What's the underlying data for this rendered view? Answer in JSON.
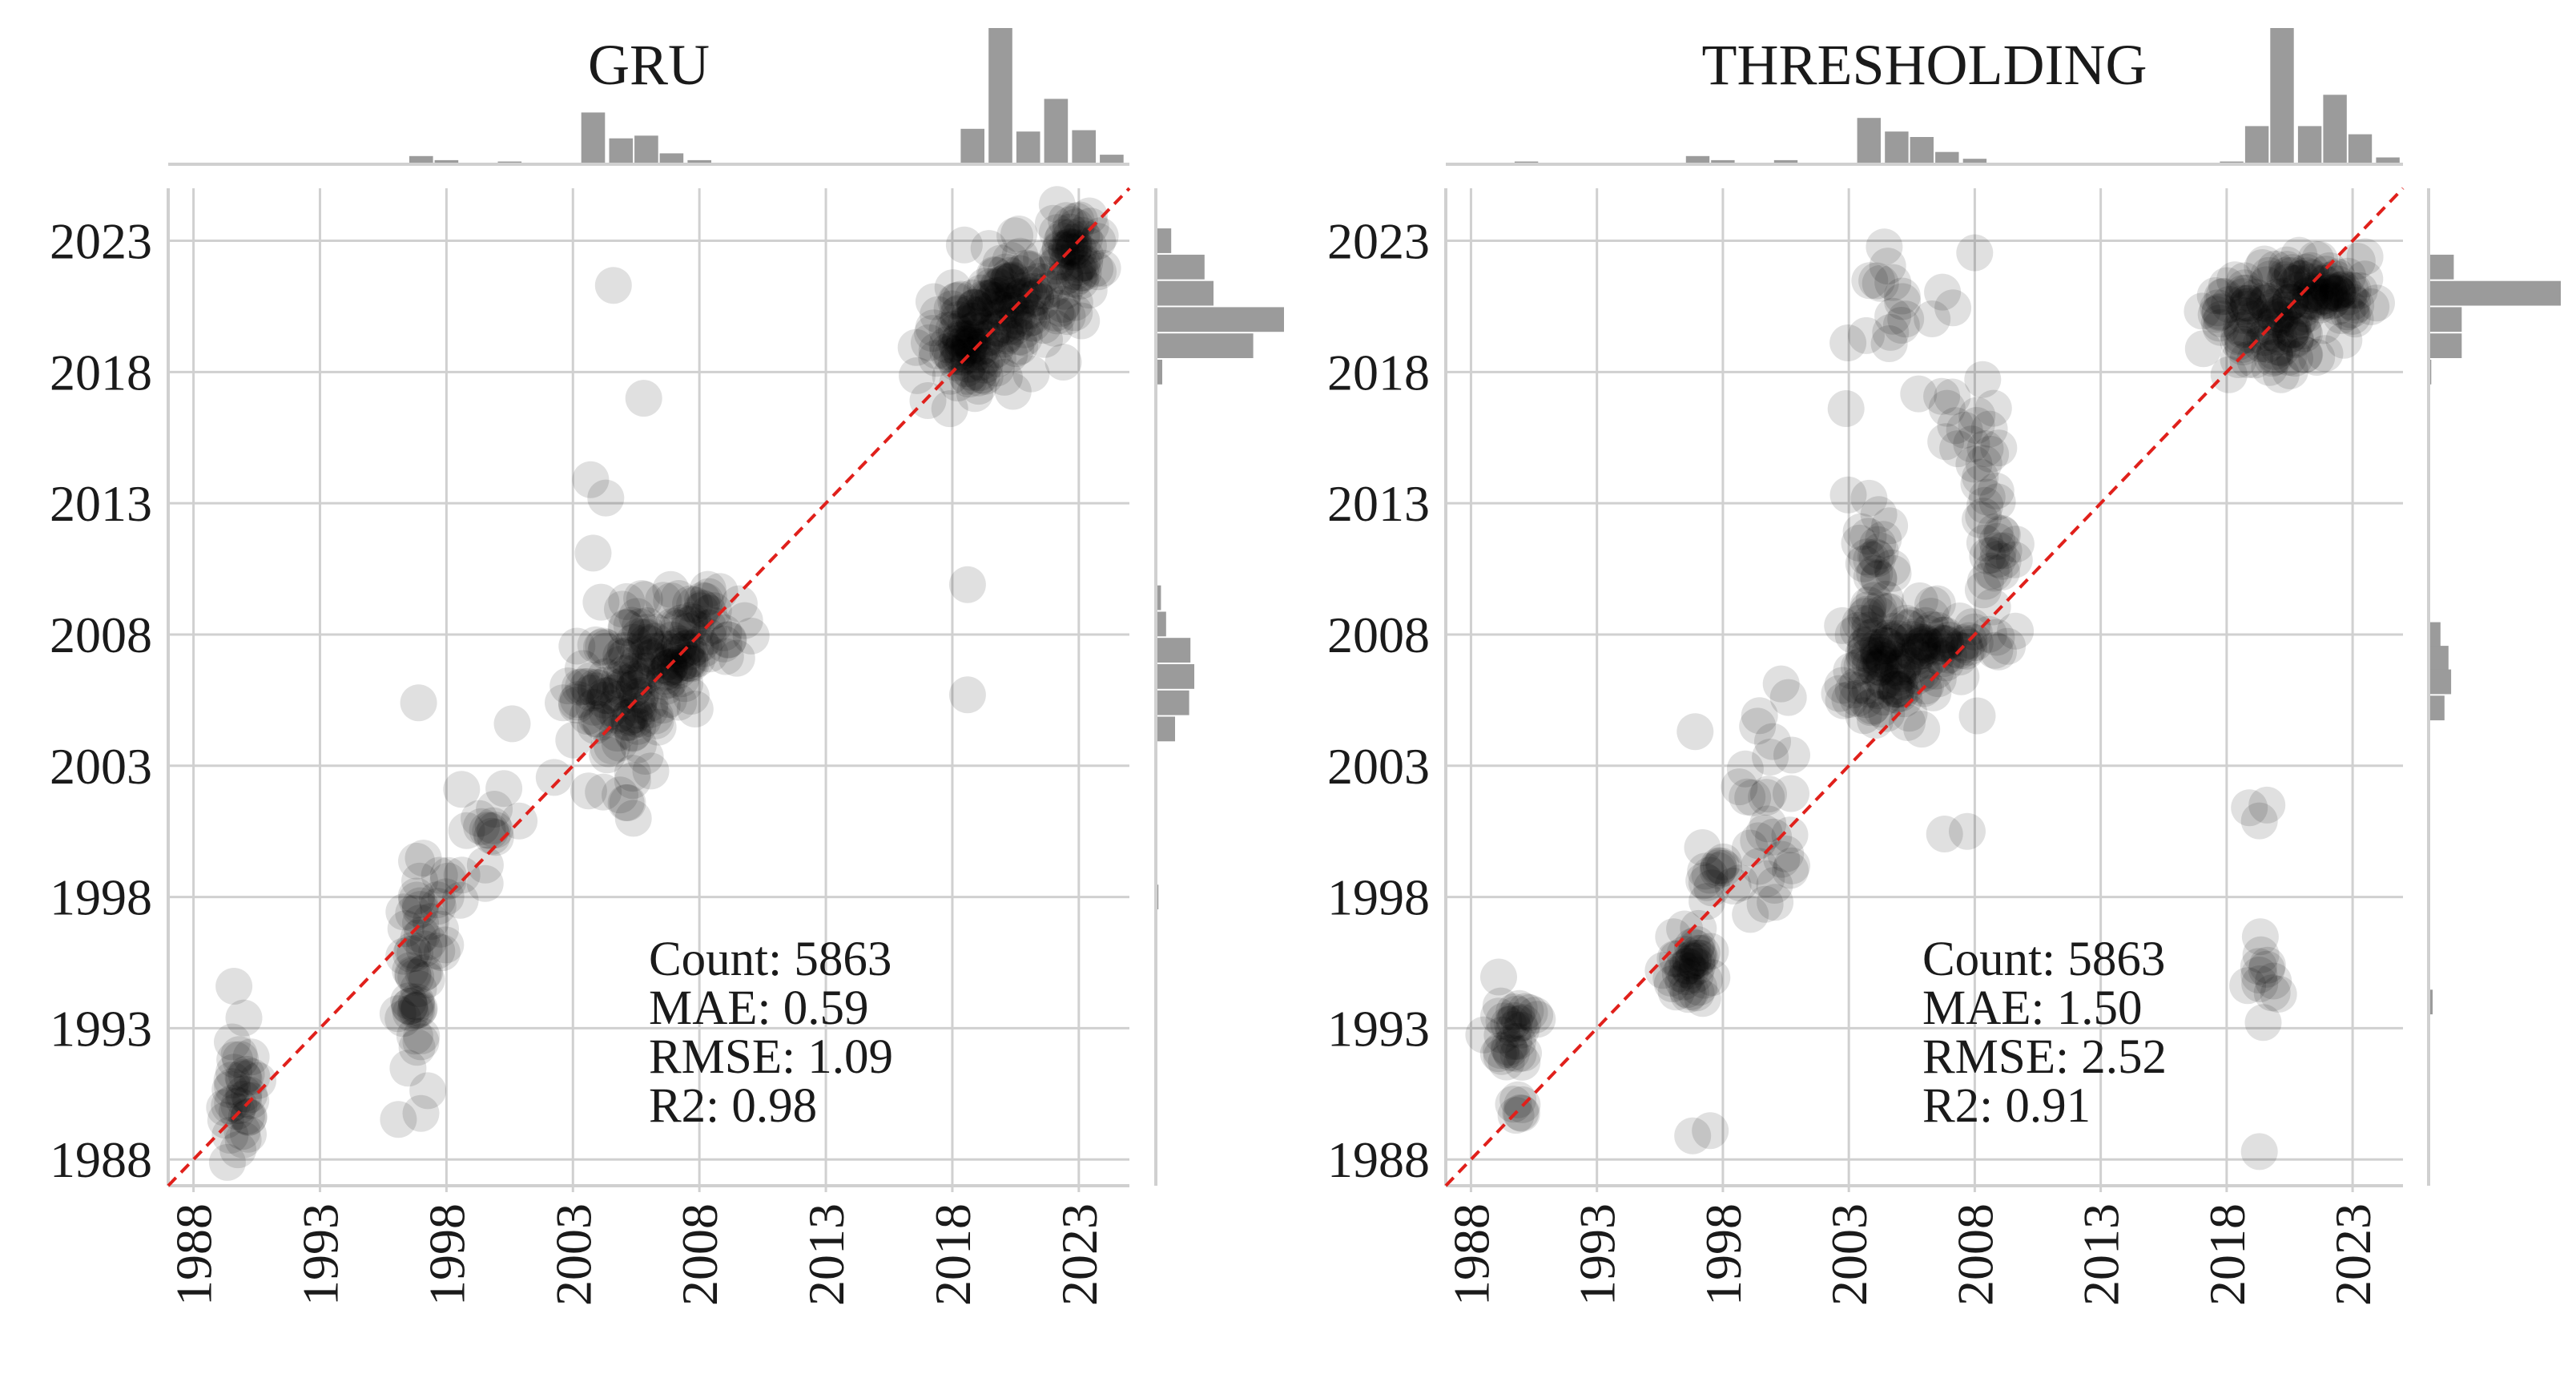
{
  "chart_data": [
    {
      "type": "scatter",
      "title": "GRU",
      "xlabel": "",
      "ylabel": "",
      "xlim": [
        1987,
        2025
      ],
      "ylim": [
        1987,
        2025
      ],
      "ticks": [
        1988,
        1993,
        1998,
        2003,
        2008,
        2013,
        2018,
        2023
      ],
      "tick_labels": [
        "1988",
        "1993",
        "1998",
        "2003",
        "2008",
        "2013",
        "2018",
        "2023"
      ],
      "grid": true,
      "reference_line": "y = x",
      "colors": {
        "points": "#000000",
        "reference_line": "#e0201b",
        "histogram": "#9b9b9b"
      },
      "annotation": [
        "Count: 5863",
        "MAE: 0.59",
        "RMSE: 1.09",
        "R2: 0.98"
      ],
      "clusters": [
        {
          "x": 1989.8,
          "y": 1990.2,
          "sx": 0.4,
          "sy": 1.3,
          "n": 34
        },
        {
          "x": 1996.8,
          "y": 1995.6,
          "sx": 0.35,
          "sy": 2.2,
          "n": 46
        },
        {
          "x": 1997.8,
          "y": 1997.8,
          "sx": 0.6,
          "sy": 0.8,
          "n": 14
        },
        {
          "x": 2000.0,
          "y": 2000.3,
          "sx": 0.5,
          "sy": 0.9,
          "n": 14
        },
        {
          "x": 2004.6,
          "y": 2005.4,
          "sx": 0.9,
          "sy": 1.4,
          "n": 90
        },
        {
          "x": 2006.5,
          "y": 2006.9,
          "sx": 1.0,
          "sy": 1.1,
          "n": 70
        },
        {
          "x": 2008.3,
          "y": 2008.3,
          "sx": 0.8,
          "sy": 0.8,
          "n": 40
        },
        {
          "x": 2018.7,
          "y": 2019.2,
          "sx": 0.9,
          "sy": 1.0,
          "n": 90
        },
        {
          "x": 2020.6,
          "y": 2020.8,
          "sx": 1.1,
          "sy": 1.1,
          "n": 100
        },
        {
          "x": 2022.8,
          "y": 2022.6,
          "sx": 0.6,
          "sy": 0.9,
          "n": 50
        }
      ],
      "outliers": [
        {
          "x": 1989.6,
          "y": 1994.6
        },
        {
          "x": 1996.9,
          "y": 2005.4
        },
        {
          "x": 1998.6,
          "y": 2002.1
        },
        {
          "x": 2000.6,
          "y": 2004.6
        },
        {
          "x": 2003.7,
          "y": 2013.9
        },
        {
          "x": 2004.3,
          "y": 2013.2
        },
        {
          "x": 2004.6,
          "y": 2021.3
        },
        {
          "x": 2005.8,
          "y": 2017.0
        },
        {
          "x": 2003.8,
          "y": 2011.1
        },
        {
          "x": 2018.6,
          "y": 2009.9
        },
        {
          "x": 2018.6,
          "y": 2005.7
        },
        {
          "x": 2004.2,
          "y": 2002.0
        }
      ],
      "x_histogram": [
        {
          "x": 1990.2,
          "h": 0.01
        },
        {
          "x": 1997.0,
          "h": 0.06
        },
        {
          "x": 1998.0,
          "h": 0.03
        },
        {
          "x": 2000.5,
          "h": 0.02
        },
        {
          "x": 2003.8,
          "h": 0.38
        },
        {
          "x": 2004.9,
          "h": 0.19
        },
        {
          "x": 2005.9,
          "h": 0.21
        },
        {
          "x": 2006.9,
          "h": 0.08
        },
        {
          "x": 2008.0,
          "h": 0.03
        },
        {
          "x": 2018.8,
          "h": 0.26
        },
        {
          "x": 2019.9,
          "h": 1.0
        },
        {
          "x": 2021.0,
          "h": 0.24
        },
        {
          "x": 2022.1,
          "h": 0.48
        },
        {
          "x": 2023.2,
          "h": 0.25
        },
        {
          "x": 2024.3,
          "h": 0.07
        }
      ],
      "y_histogram": [
        {
          "y": 2023.0,
          "w": 0.12
        },
        {
          "y": 2022.0,
          "w": 0.38
        },
        {
          "y": 2021.0,
          "w": 0.45
        },
        {
          "y": 2020.0,
          "w": 1.0
        },
        {
          "y": 2019.0,
          "w": 0.76
        },
        {
          "y": 2018.0,
          "w": 0.05
        },
        {
          "y": 2009.4,
          "w": 0.04
        },
        {
          "y": 2008.4,
          "w": 0.08
        },
        {
          "y": 2007.4,
          "w": 0.27
        },
        {
          "y": 2006.4,
          "w": 0.3
        },
        {
          "y": 2005.4,
          "w": 0.26
        },
        {
          "y": 2004.4,
          "w": 0.15
        },
        {
          "y": 1998.0,
          "w": 0.02
        }
      ]
    },
    {
      "type": "scatter",
      "title": "THRESHOLDING",
      "xlabel": "",
      "ylabel": "",
      "xlim": [
        1987,
        2025
      ],
      "ylim": [
        1987,
        2025
      ],
      "ticks": [
        1988,
        1993,
        1998,
        2003,
        2008,
        2013,
        2018,
        2023
      ],
      "tick_labels": [
        "1988",
        "1993",
        "1998",
        "2003",
        "2008",
        "2013",
        "2018",
        "2023"
      ],
      "grid": true,
      "reference_line": "y = x",
      "colors": {
        "points": "#000000",
        "reference_line": "#e0201b",
        "histogram": "#9b9b9b"
      },
      "annotation": [
        "Count: 5863",
        "MAE: 1.50",
        "RMSE: 2.52",
        "R2: 0.91"
      ],
      "clusters": [
        {
          "x": 1989.7,
          "y": 1993.0,
          "sx": 0.5,
          "sy": 1.0,
          "n": 32
        },
        {
          "x": 1990.0,
          "y": 1989.9,
          "sx": 0.3,
          "sy": 0.3,
          "n": 6
        },
        {
          "x": 1996.7,
          "y": 1995.2,
          "sx": 0.5,
          "sy": 0.6,
          "n": 40
        },
        {
          "x": 1998.0,
          "y": 1998.7,
          "sx": 0.6,
          "sy": 0.7,
          "n": 18
        },
        {
          "x": 2000.1,
          "y": 1999.0,
          "sx": 0.5,
          "sy": 1.2,
          "n": 12
        },
        {
          "x": 1999.8,
          "y": 2002.8,
          "sx": 0.6,
          "sy": 1.6,
          "n": 14
        },
        {
          "x": 2004.6,
          "y": 2006.9,
          "sx": 0.8,
          "sy": 1.2,
          "n": 100
        },
        {
          "x": 2006.7,
          "y": 2007.7,
          "sx": 1.2,
          "sy": 0.7,
          "n": 60
        },
        {
          "x": 2004.1,
          "y": 2011.0,
          "sx": 0.3,
          "sy": 1.2,
          "n": 22
        },
        {
          "x": 2008.8,
          "y": 2011.3,
          "sx": 0.5,
          "sy": 1.1,
          "n": 24
        },
        {
          "x": 2008.0,
          "y": 2015.5,
          "sx": 0.5,
          "sy": 2.2,
          "n": 18
        },
        {
          "x": 2004.9,
          "y": 2019.2,
          "sx": 1.2,
          "sy": 2.2,
          "n": 24
        },
        {
          "x": 2019.8,
          "y": 2020.1,
          "sx": 1.4,
          "sy": 1.1,
          "n": 130
        },
        {
          "x": 2022.3,
          "y": 2021.1,
          "sx": 0.9,
          "sy": 0.4,
          "n": 50
        },
        {
          "x": 2019.3,
          "y": 1994.5,
          "sx": 0.3,
          "sy": 1.0,
          "n": 12
        }
      ],
      "outliers": [
        {
          "x": 1996.9,
          "y": 2004.3
        },
        {
          "x": 1996.8,
          "y": 1988.9
        },
        {
          "x": 1997.5,
          "y": 1989.1
        },
        {
          "x": 2006.8,
          "y": 2000.4
        },
        {
          "x": 2007.7,
          "y": 2000.5
        },
        {
          "x": 2008.1,
          "y": 2004.9
        },
        {
          "x": 2018.9,
          "y": 2001.4
        },
        {
          "x": 2019.6,
          "y": 2001.5
        },
        {
          "x": 2019.3,
          "y": 2000.9
        },
        {
          "x": 2019.3,
          "y": 1988.3
        },
        {
          "x": 2000.6,
          "y": 2005.6
        }
      ],
      "x_histogram": [
        {
          "x": 1990.2,
          "h": 0.02
        },
        {
          "x": 1997.0,
          "h": 0.06
        },
        {
          "x": 1998.0,
          "h": 0.03
        },
        {
          "x": 2000.5,
          "h": 0.03
        },
        {
          "x": 2003.8,
          "h": 0.34
        },
        {
          "x": 2004.9,
          "h": 0.24
        },
        {
          "x": 2005.9,
          "h": 0.2
        },
        {
          "x": 2006.9,
          "h": 0.09
        },
        {
          "x": 2008.0,
          "h": 0.04
        },
        {
          "x": 2018.2,
          "h": 0.02
        },
        {
          "x": 2019.2,
          "h": 0.28
        },
        {
          "x": 2020.2,
          "h": 1.0
        },
        {
          "x": 2021.3,
          "h": 0.28
        },
        {
          "x": 2022.3,
          "h": 0.51
        },
        {
          "x": 2023.3,
          "h": 0.22
        },
        {
          "x": 2024.4,
          "h": 0.05
        }
      ],
      "y_histogram": [
        {
          "y": 2022.0,
          "w": 0.19
        },
        {
          "y": 2021.0,
          "w": 1.0
        },
        {
          "y": 2020.0,
          "w": 0.25
        },
        {
          "y": 2019.0,
          "w": 0.25
        },
        {
          "y": 2018.0,
          "w": 0.02
        },
        {
          "y": 2008.0,
          "w": 0.09
        },
        {
          "y": 2007.1,
          "w": 0.15
        },
        {
          "y": 2006.2,
          "w": 0.17
        },
        {
          "y": 2005.2,
          "w": 0.12
        },
        {
          "y": 1994.0,
          "w": 0.03
        }
      ]
    }
  ]
}
